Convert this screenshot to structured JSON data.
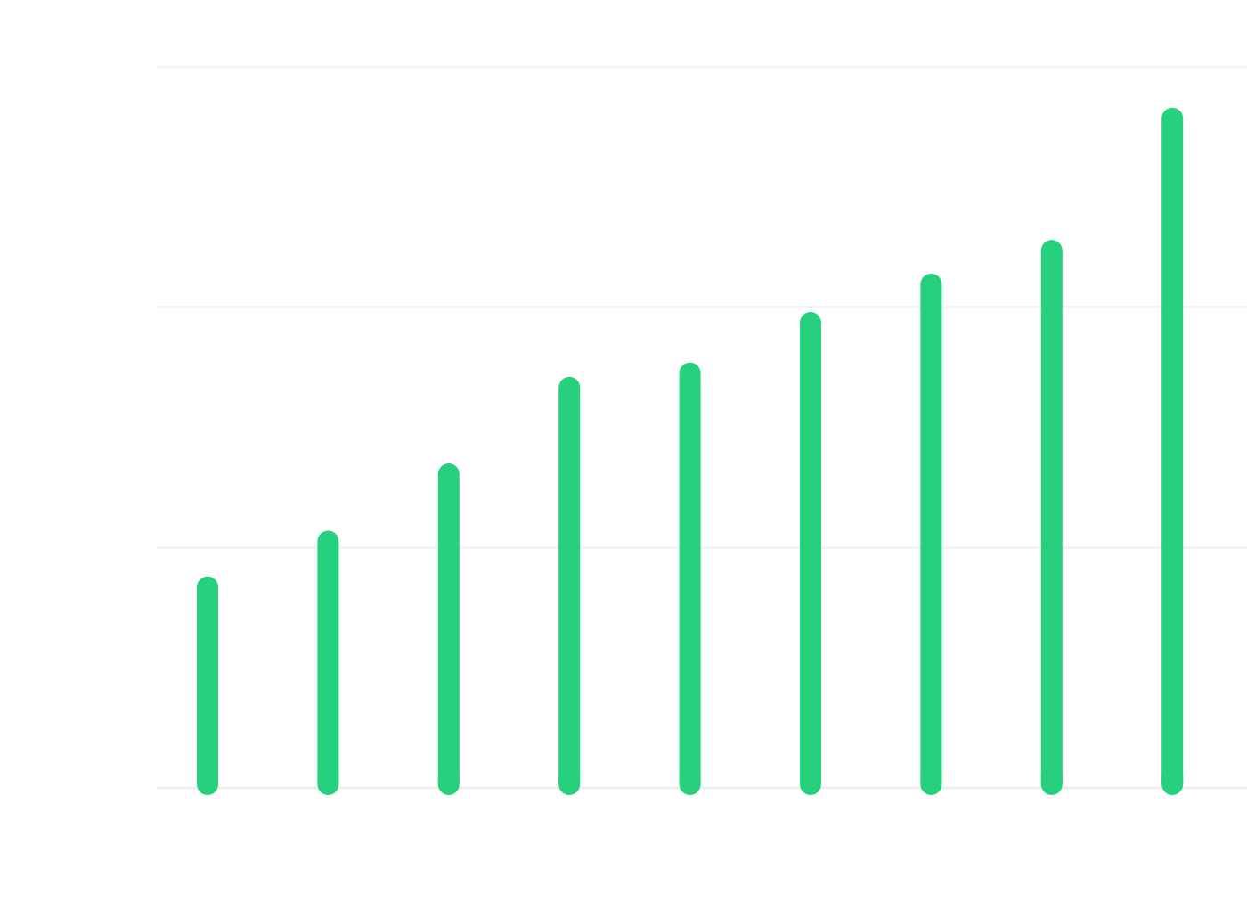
{
  "chart_data": {
    "type": "bar",
    "title": "",
    "xlabel": "",
    "ylabel": "",
    "categories": [
      "",
      "",
      "",
      "",
      "",
      "",
      "",
      "",
      ""
    ],
    "values": [
      44,
      53.5,
      67.5,
      85.5,
      88.5,
      99,
      107,
      114,
      141.5
    ],
    "ylim": [
      0,
      150
    ],
    "yticks": [
      0,
      50,
      100,
      150
    ],
    "ytick_labels": [
      "",
      "",
      "",
      ""
    ],
    "value_labels": [
      "",
      "",
      "",
      "",
      "",
      "",
      "",
      "",
      ""
    ],
    "grid": true,
    "legend": "none",
    "colors": {
      "bar": "#27d07d",
      "grid": "#f3f3f3",
      "baseline": "#eeeeee"
    }
  }
}
